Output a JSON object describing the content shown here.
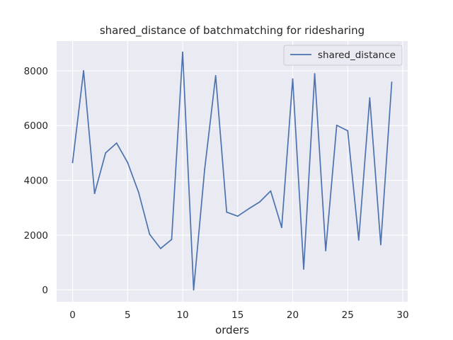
{
  "chart_data": {
    "type": "line",
    "title": "shared_distance of batchmatching for ridesharing",
    "xlabel": "orders",
    "ylabel": "",
    "xlim": [
      -1.45,
      30.45
    ],
    "ylim": [
      -434,
      9084
    ],
    "x_ticks": [
      0,
      5,
      10,
      15,
      20,
      25,
      30
    ],
    "y_ticks": [
      0,
      2000,
      4000,
      6000,
      8000
    ],
    "grid": true,
    "legend": "top-right",
    "x": [
      0,
      1,
      2,
      3,
      4,
      5,
      6,
      7,
      8,
      9,
      10,
      11,
      12,
      13,
      14,
      15,
      16,
      17,
      18,
      19,
      20,
      21,
      22,
      23,
      24,
      25,
      26,
      27,
      28,
      29
    ],
    "series": [
      {
        "name": "shared_distance",
        "color": "#4c72b0",
        "values": [
          4650,
          8000,
          3520,
          5000,
          5360,
          4650,
          3560,
          2030,
          1510,
          1840,
          8680,
          0,
          4400,
          7820,
          2840,
          2690,
          2960,
          3210,
          3610,
          2280,
          7700,
          760,
          7890,
          1430,
          6010,
          5810,
          1820,
          7010,
          1650,
          7580
        ]
      }
    ]
  },
  "colors": {
    "plot_background": "#eaeaf2",
    "grid": "#ffffff",
    "line": "#4c72b0"
  }
}
